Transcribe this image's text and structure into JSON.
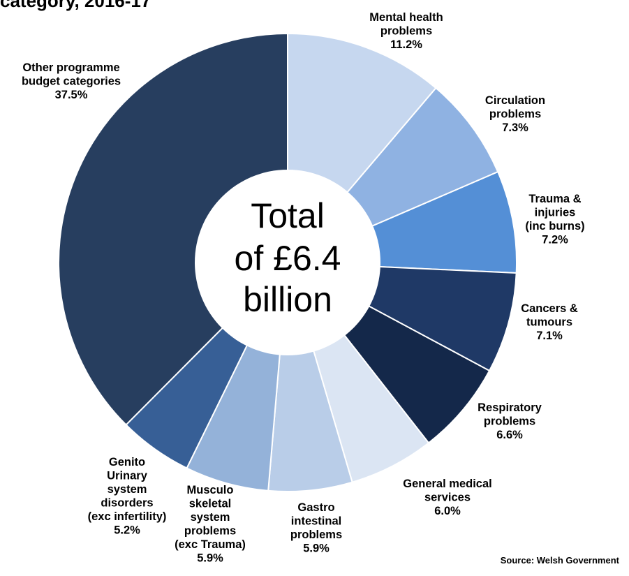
{
  "title_fragment": "category, 2016-17",
  "source": "Source: Welsh Government",
  "chart_data": {
    "type": "pie",
    "subtype": "donut",
    "title": "",
    "center_text": [
      "Total",
      "of £6.4",
      "billion"
    ],
    "unit": "%",
    "slices": [
      {
        "name": "Mental health problems",
        "lines": [
          "Mental health",
          "problems"
        ],
        "label": "11.2%",
        "value": 11.2,
        "color": "#c6d7ef"
      },
      {
        "name": "Circulation problems",
        "lines": [
          "Circulation",
          "problems"
        ],
        "label": "7.3%",
        "value": 7.3,
        "color": "#8fb2e2"
      },
      {
        "name": "Trauma & injuries (inc burns)",
        "lines": [
          "Trauma &",
          "injuries",
          "(inc burns)"
        ],
        "label": "7.2%",
        "value": 7.2,
        "color": "#548fd6"
      },
      {
        "name": "Cancers & tumours",
        "lines": [
          "Cancers &",
          "tumours"
        ],
        "label": "7.1%",
        "value": 7.1,
        "color": "#1f3966"
      },
      {
        "name": "Respiratory problems",
        "lines": [
          "Respiratory",
          "problems"
        ],
        "label": "6.6%",
        "value": 6.6,
        "color": "#14284a"
      },
      {
        "name": "General medical services",
        "lines": [
          "General medical",
          "services"
        ],
        "label": "6.0%",
        "value": 6.0,
        "color": "#dbe5f3"
      },
      {
        "name": "Gastro intestinal problems",
        "lines": [
          "Gastro",
          "intestinal",
          "problems"
        ],
        "label": "5.9%",
        "value": 5.9,
        "color": "#b9cde8"
      },
      {
        "name": "Musculo skeletal system problems (exc Trauma)",
        "lines": [
          "Musculo",
          "skeletal",
          "system",
          "problems",
          "(exc Trauma)"
        ],
        "label": "5.9%",
        "value": 5.9,
        "color": "#94b2d9"
      },
      {
        "name": "Genito Urinary system disorders (exc infertility)",
        "lines": [
          "Genito",
          "Urinary",
          "system",
          "disorders",
          "(exc infertility)"
        ],
        "label": "5.2%",
        "value": 5.2,
        "color": "#375f96"
      },
      {
        "name": "Other programme budget categories",
        "lines": [
          "Other programme",
          "budget categories"
        ],
        "label": "37.5%",
        "value": 37.5,
        "color": "#273e5f"
      }
    ]
  }
}
